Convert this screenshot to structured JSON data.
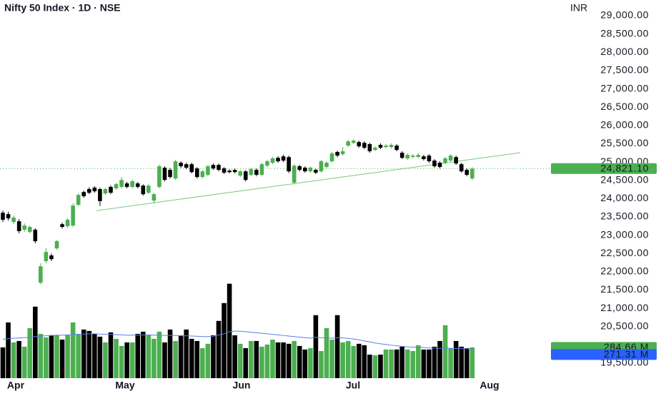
{
  "chart_data": {
    "type": "candlestick",
    "title": "Nifty 50 Index · 1D · NSE",
    "currency": "INR",
    "up_color": "#4caf50",
    "down_color": "#000000",
    "ma_color": "#5b7fe6",
    "trend_color": "#7cc87f",
    "xlim": [
      -0.53,
      101.46
    ],
    "ylim": [
      19090,
      29430
    ],
    "volume_lim": [
      0,
      3500
    ],
    "xticks": [
      {
        "value": 2.38,
        "label": "Apr"
      },
      {
        "value": 22.65,
        "label": "May"
      },
      {
        "value": 44.24,
        "label": "Jun"
      },
      {
        "value": 64.9,
        "label": "Jul"
      },
      {
        "value": 90.2,
        "label": "Aug"
      }
    ],
    "yticks": [
      {
        "value": 29000,
        "label": "29,000.00"
      },
      {
        "value": 28500,
        "label": "28,500.00"
      },
      {
        "value": 28000,
        "label": "28,000.00"
      },
      {
        "value": 27500,
        "label": "27,500.00"
      },
      {
        "value": 27000,
        "label": "27,000.00"
      },
      {
        "value": 26500,
        "label": "26,500.00"
      },
      {
        "value": 26000,
        "label": "26,000.00"
      },
      {
        "value": 25500,
        "label": "25,500.00"
      },
      {
        "value": 25000,
        "label": "25,000.00"
      },
      {
        "value": 24500,
        "label": "24,500.00"
      },
      {
        "value": 24000,
        "label": "24,000.00"
      },
      {
        "value": 23500,
        "label": "23,500.00"
      },
      {
        "value": 23000,
        "label": "23,000.00"
      },
      {
        "value": 22500,
        "label": "22,500.00"
      },
      {
        "value": 22000,
        "label": "22,000.00"
      },
      {
        "value": 21500,
        "label": "21,500.00"
      },
      {
        "value": 21000,
        "label": "21,000.00"
      },
      {
        "value": 20500,
        "label": "20,500.00"
      },
      {
        "value": 19500,
        "label": "19,500.00"
      }
    ],
    "open": [
      23615,
      23575,
      23360,
      23380,
      23150,
      23090,
      23150,
      21700,
      22290,
      22445,
      22640,
      23300,
      23245,
      23265,
      23830,
      24180,
      24260,
      24300,
      24260,
      24140,
      24320,
      24280,
      24320,
      24415,
      24320,
      24415,
      24355,
      24160,
      23945,
      24320,
      24845,
      24785,
      24550,
      24980,
      24940,
      24940,
      24825,
      24590,
      24650,
      24920,
      24920,
      24825,
      24765,
      24785,
      24630,
      24745,
      24650,
      24785,
      24650,
      24900,
      24980,
      25115,
      25155,
      25135,
      24435,
      24885,
      24845,
      24745,
      24785,
      24745,
      24865,
      25020,
      25275,
      25215,
      25450,
      25525,
      25545,
      25525,
      25490,
      25330,
      25470,
      25410,
      25410,
      25450,
      25255,
      25100,
      25140,
      25140,
      25155,
      25175,
      25040,
      24980,
      24980,
      25040,
      25135,
      24940,
      24785,
      24550
    ],
    "high": [
      23670,
      23640,
      23540,
      23440,
      23320,
      23260,
      23190,
      22230,
      22640,
      22500,
      22870,
      23340,
      23460,
      23870,
      24140,
      24220,
      24310,
      24340,
      24300,
      24300,
      24360,
      24430,
      24590,
      24460,
      24510,
      24450,
      24390,
      24395,
      24160,
      24930,
      24880,
      24840,
      25060,
      25020,
      24980,
      24980,
      24860,
      24785,
      24920,
      24960,
      24960,
      24860,
      24800,
      24820,
      24780,
      24780,
      24845,
      24825,
      24980,
      25060,
      25140,
      25160,
      25200,
      25175,
      24940,
      24920,
      24880,
      24880,
      24820,
      25060,
      25020,
      25275,
      25310,
      25410,
      25600,
      25620,
      25585,
      25565,
      25525,
      25430,
      25510,
      25490,
      25510,
      25490,
      25295,
      25235,
      25215,
      25235,
      25195,
      25215,
      25080,
      25020,
      25135,
      25215,
      25175,
      24980,
      24825,
      24860
    ],
    "low": [
      23360,
      23400,
      23300,
      23050,
      23090,
      23050,
      22780,
      21660,
      22230,
      22290,
      22600,
      23180,
      23200,
      23220,
      23790,
      24020,
      24120,
      24160,
      23800,
      24100,
      24120,
      24240,
      24280,
      24280,
      24280,
      24280,
      24080,
      24120,
      23870,
      24280,
      24470,
      24550,
      24510,
      24840,
      24800,
      24690,
      24550,
      24550,
      24610,
      24785,
      24745,
      24670,
      24690,
      24690,
      24590,
      24470,
      24610,
      24610,
      24610,
      24860,
      24940,
      24980,
      25000,
      24700,
      24390,
      24745,
      24710,
      24710,
      24670,
      24710,
      24825,
      24980,
      25135,
      25175,
      25410,
      25490,
      25390,
      25350,
      25255,
      25295,
      25350,
      25370,
      25370,
      25295,
      25080,
      25060,
      25100,
      25100,
      25040,
      24980,
      24845,
      24825,
      24940,
      25000,
      24920,
      24710,
      24610,
      24510
    ],
    "close": [
      23420,
      23460,
      23480,
      23110,
      23265,
      23225,
      22835,
      22150,
      22540,
      22345,
      22835,
      23225,
      23420,
      23810,
      24100,
      24065,
      24160,
      24200,
      23930,
      24260,
      24160,
      24395,
      24510,
      24320,
      24475,
      24320,
      24120,
      24355,
      24120,
      24885,
      24510,
      24590,
      25020,
      24885,
      24845,
      24725,
      24590,
      24745,
      24885,
      24825,
      24785,
      24710,
      24725,
      24725,
      24745,
      24510,
      24805,
      24650,
      24940,
      25020,
      25100,
      25020,
      25040,
      24745,
      24900,
      24785,
      24745,
      24845,
      24710,
      25020,
      24980,
      25235,
      25175,
      25295,
      25565,
      25585,
      25430,
      25390,
      25295,
      25390,
      25390,
      25450,
      25470,
      25330,
      25115,
      25195,
      25175,
      25195,
      25080,
      25020,
      24885,
      24865,
      25100,
      25175,
      24960,
      24745,
      24650,
      24821.1
    ],
    "volume": [
      285,
      516,
      331,
      344,
      291,
      463,
      662,
      410,
      377,
      397,
      397,
      357,
      397,
      516,
      410,
      450,
      437,
      410,
      384,
      331,
      424,
      364,
      298,
      331,
      331,
      410,
      430,
      397,
      364,
      430,
      331,
      450,
      344,
      397,
      450,
      364,
      344,
      278,
      318,
      397,
      530,
      695,
      874,
      397,
      318,
      278,
      344,
      344,
      291,
      311,
      357,
      331,
      331,
      318,
      344,
      298,
      265,
      278,
      583,
      251,
      463,
      357,
      583,
      331,
      344,
      298,
      318,
      305,
      218,
      212,
      218,
      265,
      265,
      265,
      291,
      265,
      251,
      305,
      265,
      265,
      291,
      344,
      490,
      278,
      344,
      291,
      278,
      284.66
    ],
    "volume_ma": [
      360,
      365,
      370,
      372,
      375,
      378,
      385,
      390,
      392,
      395,
      398,
      398,
      400,
      405,
      405,
      408,
      410,
      410,
      408,
      405,
      405,
      402,
      400,
      398,
      398,
      398,
      400,
      400,
      398,
      398,
      395,
      395,
      395,
      392,
      392,
      390,
      388,
      385,
      385,
      388,
      400,
      410,
      430,
      435,
      435,
      430,
      425,
      420,
      415,
      410,
      405,
      400,
      395,
      390,
      385,
      380,
      375,
      370,
      380,
      375,
      372,
      370,
      375,
      372,
      368,
      362,
      355,
      345,
      335,
      325,
      318,
      312,
      305,
      300,
      295,
      290,
      287,
      285,
      283,
      280,
      278,
      276,
      278,
      276,
      275,
      273,
      272,
      271.31
    ],
    "trendline": {
      "x": [
        17.35,
        95.9
      ],
      "y": [
        23670,
        25255
      ]
    },
    "last_price": {
      "value": 24821.1,
      "label": "24,821.10"
    },
    "volume_label": {
      "value": 284.66,
      "label": "284.66 M"
    },
    "volume_ma_label": {
      "value": 271.31,
      "label": "271.31 M"
    }
  }
}
